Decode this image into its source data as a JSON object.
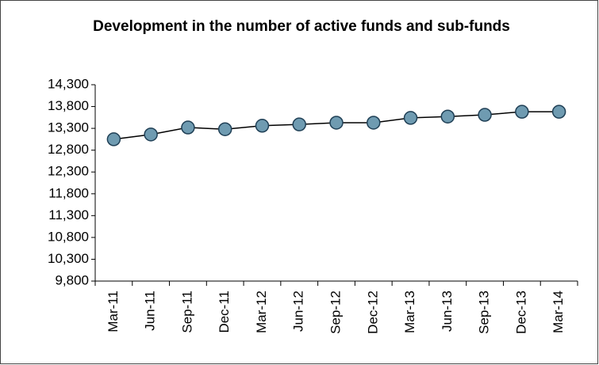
{
  "chart_data": {
    "type": "line",
    "title": "Development in the number of active funds and sub-funds",
    "categories": [
      "Mar-11",
      "Jun-11",
      "Sep-11",
      "Dec-11",
      "Mar-12",
      "Jun-12",
      "Sep-12",
      "Dec-12",
      "Mar-13",
      "Jun-13",
      "Sep-13",
      "Dec-13",
      "Mar-14"
    ],
    "values": [
      13050,
      13160,
      13320,
      13280,
      13360,
      13390,
      13430,
      13430,
      13540,
      13570,
      13610,
      13680,
      13680
    ],
    "color": "#000000",
    "marker_color": "#6f9bb1",
    "ylim": [
      9800,
      14300
    ],
    "yticks": [
      {
        "value": 9800,
        "label": "9,800"
      },
      {
        "value": 10300,
        "label": "10,300"
      },
      {
        "value": 10800,
        "label": "10,800"
      },
      {
        "value": 11300,
        "label": "11,300"
      },
      {
        "value": 11800,
        "label": "11,800"
      },
      {
        "value": 12300,
        "label": "12,300"
      },
      {
        "value": 12800,
        "label": "12,800"
      },
      {
        "value": 13300,
        "label": "13,300"
      },
      {
        "value": 13800,
        "label": "13,800"
      },
      {
        "value": 14300,
        "label": "14,300"
      }
    ],
    "grid": false
  }
}
